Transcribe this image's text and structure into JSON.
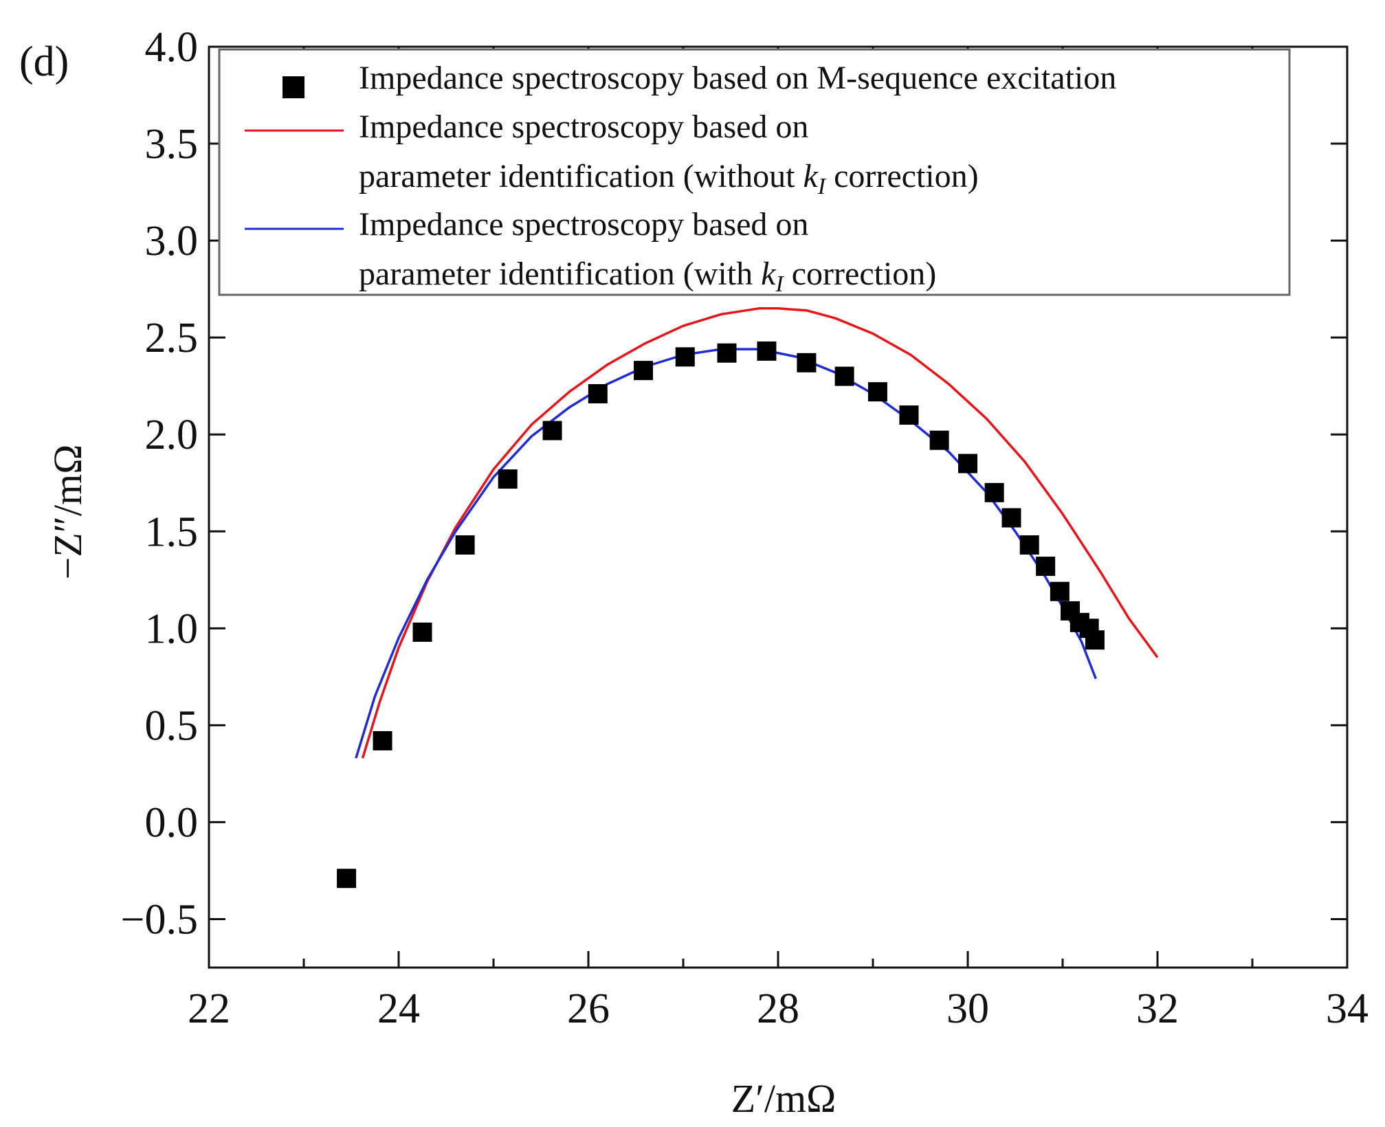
{
  "panel_label": "(d)",
  "colors": {
    "measured": "#000000",
    "without_correction": "#e8141a",
    "with_correction": "#1f2bd6",
    "legend_frame": "#666666"
  },
  "chart_data": {
    "type": "scatter",
    "title": "",
    "xlabel": "Z′/mΩ",
    "ylabel": "−Z″/mΩ",
    "xlim": [
      22,
      34
    ],
    "ylim": [
      -0.75,
      4.0
    ],
    "x_ticks": [
      22,
      24,
      26,
      28,
      30,
      32,
      34
    ],
    "x_tick_labels": [
      "22",
      "24",
      "26",
      "28",
      "30",
      "32",
      "34"
    ],
    "x_minor_ticks": [
      23,
      25,
      27,
      29,
      31,
      33
    ],
    "y_ticks": [
      -0.5,
      0.0,
      0.5,
      1.0,
      1.5,
      2.0,
      2.5,
      3.0,
      3.5,
      4.0
    ],
    "y_tick_labels": [
      "−0.5",
      "0.0",
      "0.5",
      "1.0",
      "1.5",
      "2.0",
      "2.5",
      "3.0",
      "3.5",
      "4.0"
    ],
    "grid": false,
    "legend_position": "top",
    "series": [
      {
        "name": "Impedance spectroscopy based on M-sequence excitation",
        "legend_lines": [
          "Impedance spectroscopy based on M-sequence excitation"
        ],
        "kind": "markers",
        "marker": "square",
        "x": [
          23.45,
          23.83,
          24.25,
          24.7,
          25.15,
          25.62,
          26.1,
          26.58,
          27.02,
          27.46,
          27.88,
          28.3,
          28.7,
          29.05,
          29.38,
          29.7,
          30.0,
          30.28,
          30.46,
          30.65,
          30.82,
          30.97,
          31.08,
          31.18,
          31.28,
          31.34
        ],
        "y": [
          -0.29,
          0.42,
          0.98,
          1.43,
          1.77,
          2.02,
          2.21,
          2.33,
          2.4,
          2.42,
          2.43,
          2.37,
          2.3,
          2.22,
          2.1,
          1.97,
          1.85,
          1.7,
          1.57,
          1.43,
          1.32,
          1.19,
          1.09,
          1.03,
          1.0,
          0.94
        ]
      },
      {
        "name": "Impedance spectroscopy based on parameter identification (without kI correction)",
        "legend_lines": [
          "Impedance spectroscopy based on",
          "parameter identification (without ",
          " correction)"
        ],
        "kind": "line",
        "x": [
          23.62,
          23.8,
          24.0,
          24.3,
          24.6,
          25.0,
          25.4,
          25.8,
          26.2,
          26.6,
          27.0,
          27.4,
          27.8,
          28.0,
          28.3,
          28.6,
          29.0,
          29.4,
          29.8,
          30.2,
          30.6,
          31.0,
          31.4,
          31.7,
          32.0
        ],
        "y": [
          0.33,
          0.62,
          0.9,
          1.24,
          1.52,
          1.82,
          2.05,
          2.22,
          2.36,
          2.47,
          2.56,
          2.62,
          2.65,
          2.65,
          2.64,
          2.6,
          2.52,
          2.41,
          2.26,
          2.08,
          1.86,
          1.59,
          1.29,
          1.05,
          0.85
        ]
      },
      {
        "name": "Impedance spectroscopy based on parameter identification (with kI correction)",
        "legend_lines": [
          "Impedance spectroscopy based on",
          "parameter identification (with ",
          " correction)"
        ],
        "kind": "line",
        "x": [
          23.55,
          23.75,
          24.0,
          24.3,
          24.6,
          25.0,
          25.4,
          25.8,
          26.2,
          26.6,
          27.0,
          27.4,
          27.8,
          28.2,
          28.6,
          29.0,
          29.4,
          29.8,
          30.2,
          30.5,
          30.8,
          31.0,
          31.2,
          31.35
        ],
        "y": [
          0.33,
          0.65,
          0.95,
          1.25,
          1.5,
          1.78,
          1.99,
          2.14,
          2.26,
          2.35,
          2.41,
          2.44,
          2.44,
          2.4,
          2.32,
          2.21,
          2.07,
          1.91,
          1.7,
          1.5,
          1.28,
          1.11,
          0.93,
          0.74
        ]
      }
    ]
  },
  "legend_symbol": {
    "k": "k",
    "sub": "I"
  }
}
